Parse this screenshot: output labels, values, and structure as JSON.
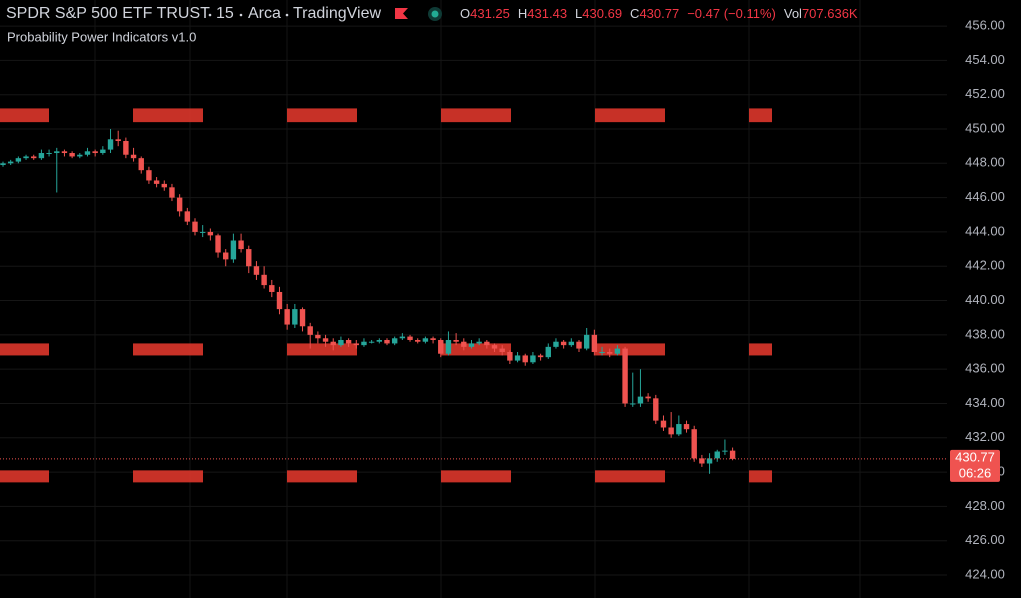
{
  "header": {
    "symbol": "SPDR S&P 500 ETF TRUST",
    "interval": "15",
    "exchange": "Arca",
    "source": "TradingView",
    "indicator": "Probability Power Indicators v1.0",
    "ohlc_legend": [
      {
        "label": "O",
        "value": 431.25
      },
      {
        "label": "H",
        "value": 431.43
      },
      {
        "label": "L",
        "value": 430.69
      },
      {
        "label": "C",
        "value": 430.77
      }
    ],
    "change": "−0.47 (−0.11%)",
    "volume_label": "Vol",
    "volume": "707.636K"
  },
  "chart_data": {
    "type": "candlestick",
    "up_color": "#26a69a",
    "down_color": "#ef5350",
    "box_color": "#d8352a",
    "grid": true,
    "ylim": [
      422.66,
      457.52
    ],
    "yticks": [
      {
        "value": 424,
        "label": "424.00"
      },
      {
        "value": 426,
        "label": "426.00"
      },
      {
        "value": 428,
        "label": "428.00"
      },
      {
        "value": 430,
        "label": "430.00"
      },
      {
        "value": 432,
        "label": "432.00"
      },
      {
        "value": 434,
        "label": "434.00"
      },
      {
        "value": 436,
        "label": "436.00"
      },
      {
        "value": 438,
        "label": "438.00"
      },
      {
        "value": 440,
        "label": "440.00"
      },
      {
        "value": 442,
        "label": "442.00"
      },
      {
        "value": 444,
        "label": "444.00"
      },
      {
        "value": 446,
        "label": "446.00"
      },
      {
        "value": 448,
        "label": "448.00"
      },
      {
        "value": 450,
        "label": "450.00"
      },
      {
        "value": 452,
        "label": "452.00"
      },
      {
        "value": 454,
        "label": "454.00"
      },
      {
        "value": 456,
        "label": "456.00"
      }
    ],
    "countdown": "06:26",
    "box_levels": [
      [
        450.4,
        451.2
      ],
      [
        436.8,
        437.5
      ],
      [
        429.4,
        430.1
      ]
    ],
    "candles": [
      [
        447.9,
        448.1,
        447.8,
        448.0
      ],
      [
        448.0,
        448.2,
        447.9,
        448.1
      ],
      [
        448.1,
        448.4,
        448.0,
        448.3
      ],
      [
        448.3,
        448.5,
        448.2,
        448.4
      ],
      [
        448.4,
        448.5,
        448.2,
        448.3
      ],
      [
        448.3,
        448.8,
        448.2,
        448.6
      ],
      [
        448.6,
        448.8,
        448.4,
        448.6
      ],
      [
        448.6,
        448.9,
        446.3,
        448.7
      ],
      [
        448.7,
        448.8,
        448.4,
        448.6
      ],
      [
        448.6,
        448.7,
        448.3,
        448.4
      ],
      [
        448.4,
        448.6,
        448.3,
        448.5
      ],
      [
        448.5,
        448.9,
        448.4,
        448.7
      ],
      [
        448.7,
        448.8,
        448.4,
        448.6
      ],
      [
        448.6,
        449.0,
        448.5,
        448.8
      ],
      [
        448.8,
        450.0,
        448.6,
        449.4
      ],
      [
        449.4,
        449.9,
        449.0,
        449.3
      ],
      [
        449.3,
        449.5,
        448.3,
        448.5
      ],
      [
        448.5,
        448.9,
        448.1,
        448.3
      ],
      [
        448.3,
        448.4,
        447.4,
        447.6
      ],
      [
        447.6,
        447.8,
        446.8,
        447.0
      ],
      [
        447.0,
        447.2,
        446.6,
        446.8
      ],
      [
        446.8,
        447.0,
        446.4,
        446.6
      ],
      [
        446.6,
        446.8,
        445.8,
        446.0
      ],
      [
        446.0,
        446.2,
        444.9,
        445.2
      ],
      [
        445.2,
        445.4,
        444.4,
        444.6
      ],
      [
        444.6,
        444.8,
        443.8,
        444.0
      ],
      [
        444.0,
        444.4,
        443.7,
        444.0
      ],
      [
        444.0,
        444.2,
        443.5,
        443.8
      ],
      [
        443.8,
        443.9,
        442.5,
        442.8
      ],
      [
        442.8,
        443.0,
        442.0,
        442.4
      ],
      [
        442.4,
        443.9,
        442.2,
        443.5
      ],
      [
        443.5,
        443.9,
        442.8,
        443.0
      ],
      [
        443.0,
        443.2,
        441.6,
        442.0
      ],
      [
        442.0,
        442.3,
        441.2,
        441.5
      ],
      [
        441.5,
        442.0,
        440.7,
        440.9
      ],
      [
        440.9,
        441.2,
        440.2,
        440.5
      ],
      [
        440.5,
        440.8,
        439.2,
        439.5
      ],
      [
        439.5,
        439.8,
        438.3,
        438.6
      ],
      [
        438.6,
        439.8,
        438.4,
        439.5
      ],
      [
        439.5,
        439.6,
        438.2,
        438.5
      ],
      [
        438.5,
        438.7,
        437.2,
        438.0
      ],
      [
        438.0,
        438.2,
        437.5,
        437.8
      ],
      [
        437.8,
        438.0,
        437.3,
        437.6
      ],
      [
        437.6,
        437.8,
        437.1,
        437.4
      ],
      [
        437.4,
        437.9,
        437.3,
        437.7
      ],
      [
        437.7,
        437.8,
        437.3,
        437.5
      ],
      [
        437.5,
        437.7,
        437.2,
        437.4
      ],
      [
        437.4,
        437.8,
        437.3,
        437.6
      ],
      [
        437.6,
        437.7,
        437.5,
        437.6
      ],
      [
        437.6,
        437.8,
        437.5,
        437.7
      ],
      [
        437.7,
        437.8,
        437.4,
        437.5
      ],
      [
        437.5,
        437.9,
        437.4,
        437.8
      ],
      [
        437.8,
        438.1,
        437.7,
        437.9
      ],
      [
        437.9,
        438.0,
        437.6,
        437.7
      ],
      [
        437.7,
        437.8,
        437.5,
        437.6
      ],
      [
        437.6,
        437.9,
        437.5,
        437.8
      ],
      [
        437.8,
        437.9,
        437.5,
        437.7
      ],
      [
        437.7,
        437.8,
        436.7,
        436.9
      ],
      [
        436.9,
        438.2,
        436.8,
        437.7
      ],
      [
        437.7,
        438.1,
        437.4,
        437.6
      ],
      [
        437.6,
        437.8,
        437.1,
        437.3
      ],
      [
        437.3,
        437.7,
        437.2,
        437.5
      ],
      [
        437.5,
        437.8,
        437.4,
        437.6
      ],
      [
        437.6,
        437.7,
        437.2,
        437.4
      ],
      [
        437.4,
        437.5,
        437.0,
        437.2
      ],
      [
        437.2,
        437.4,
        436.8,
        437.0
      ],
      [
        437.0,
        437.1,
        436.3,
        436.5
      ],
      [
        436.5,
        437.0,
        436.4,
        436.8
      ],
      [
        436.8,
        436.9,
        436.2,
        436.4
      ],
      [
        436.4,
        437.0,
        436.3,
        436.8
      ],
      [
        436.8,
        436.9,
        436.5,
        436.7
      ],
      [
        436.7,
        437.5,
        436.6,
        437.3
      ],
      [
        437.3,
        437.8,
        437.2,
        437.6
      ],
      [
        437.6,
        437.7,
        437.2,
        437.4
      ],
      [
        437.4,
        437.8,
        437.3,
        437.6
      ],
      [
        437.6,
        437.7,
        437.0,
        437.2
      ],
      [
        437.2,
        438.4,
        437.1,
        438.0
      ],
      [
        438.0,
        438.3,
        436.8,
        437.0
      ],
      [
        437.0,
        437.3,
        436.8,
        437.0
      ],
      [
        437.0,
        437.2,
        436.7,
        436.9
      ],
      [
        436.9,
        437.4,
        436.8,
        437.2
      ],
      [
        437.2,
        437.3,
        433.8,
        434.0
      ],
      [
        434.0,
        435.8,
        433.8,
        434.0
      ],
      [
        434.0,
        436.0,
        433.8,
        434.4
      ],
      [
        434.4,
        434.6,
        434.1,
        434.3
      ],
      [
        434.3,
        434.5,
        432.8,
        433.0
      ],
      [
        433.0,
        433.3,
        432.4,
        432.6
      ],
      [
        432.6,
        433.5,
        432.0,
        432.2
      ],
      [
        432.2,
        433.3,
        432.1,
        432.8
      ],
      [
        432.8,
        433.0,
        432.3,
        432.5
      ],
      [
        432.5,
        432.7,
        430.6,
        430.8
      ],
      [
        430.8,
        431.0,
        430.3,
        430.5
      ],
      [
        430.5,
        431.1,
        429.9,
        430.8
      ],
      [
        430.8,
        431.3,
        430.6,
        431.2
      ],
      [
        431.2,
        431.9,
        431.0,
        431.25
      ],
      [
        431.25,
        431.43,
        430.69,
        430.77
      ]
    ]
  }
}
